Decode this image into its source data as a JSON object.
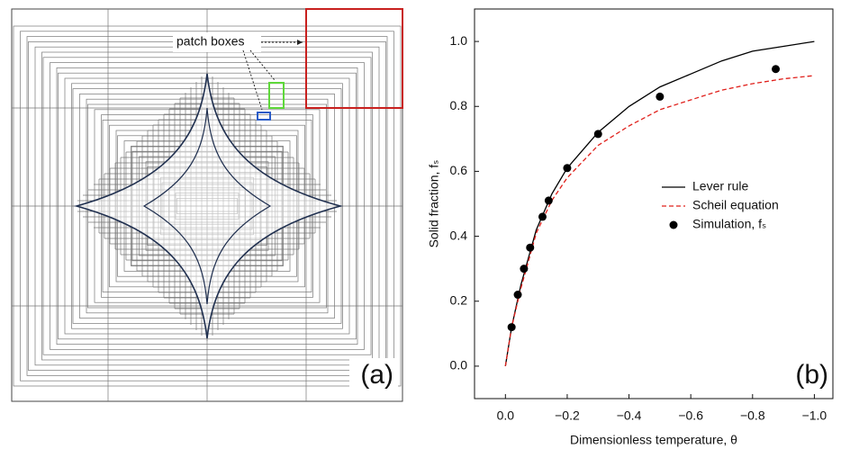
{
  "panel_a": {
    "annotation": "patch boxes",
    "label": "(a)"
  },
  "chart_data": {
    "type": "line",
    "label": "(b)",
    "x_label": "Dimensionless temperature, θ",
    "y_label": "Solid fraction, fₛ",
    "xlim": [
      0.1,
      -1.06
    ],
    "ylim": [
      -0.1,
      1.1
    ],
    "xticks": [
      {
        "value": 0,
        "label": "0.0"
      },
      {
        "value": -0.2,
        "label": "−0.2"
      },
      {
        "value": -0.4,
        "label": "−0.4"
      },
      {
        "value": -0.6,
        "label": "−0.6"
      },
      {
        "value": -0.8,
        "label": "−0.8"
      },
      {
        "value": -1.0,
        "label": "−1.0"
      }
    ],
    "yticks": [
      {
        "value": 0,
        "label": "0.0"
      },
      0.2,
      0.4,
      0.6,
      0.8,
      {
        "value": 1.0,
        "label": "1.0"
      }
    ],
    "legend": "center right",
    "series": [
      {
        "name": "Lever rule",
        "color": "#000000",
        "style": "solid",
        "x": [
          0,
          -0.02,
          -0.05,
          -0.1,
          -0.15,
          -0.2,
          -0.3,
          -0.4,
          -0.5,
          -0.6,
          -0.7,
          -0.8,
          -0.9,
          -1.0
        ],
        "values": [
          0,
          0.12,
          0.25,
          0.42,
          0.53,
          0.61,
          0.72,
          0.8,
          0.86,
          0.9,
          0.94,
          0.97,
          0.985,
          1.0
        ]
      },
      {
        "name": "Scheil equation",
        "color": "#e0201b",
        "style": "dashed",
        "x": [
          0,
          -0.02,
          -0.05,
          -0.1,
          -0.15,
          -0.2,
          -0.3,
          -0.4,
          -0.5,
          -0.6,
          -0.7,
          -0.8,
          -0.9,
          -1.0
        ],
        "values": [
          0,
          0.12,
          0.24,
          0.41,
          0.51,
          0.58,
          0.68,
          0.74,
          0.79,
          0.82,
          0.85,
          0.87,
          0.885,
          0.895
        ]
      },
      {
        "name": "Simulation, fₛ",
        "color": "#000000",
        "style": "markers",
        "x": [
          -0.02,
          -0.04,
          -0.06,
          -0.08,
          -0.12,
          -0.14,
          -0.2,
          -0.3,
          -0.5,
          -0.875
        ],
        "values": [
          0.12,
          0.22,
          0.3,
          0.365,
          0.46,
          0.51,
          0.61,
          0.715,
          0.83,
          0.915
        ]
      }
    ]
  }
}
